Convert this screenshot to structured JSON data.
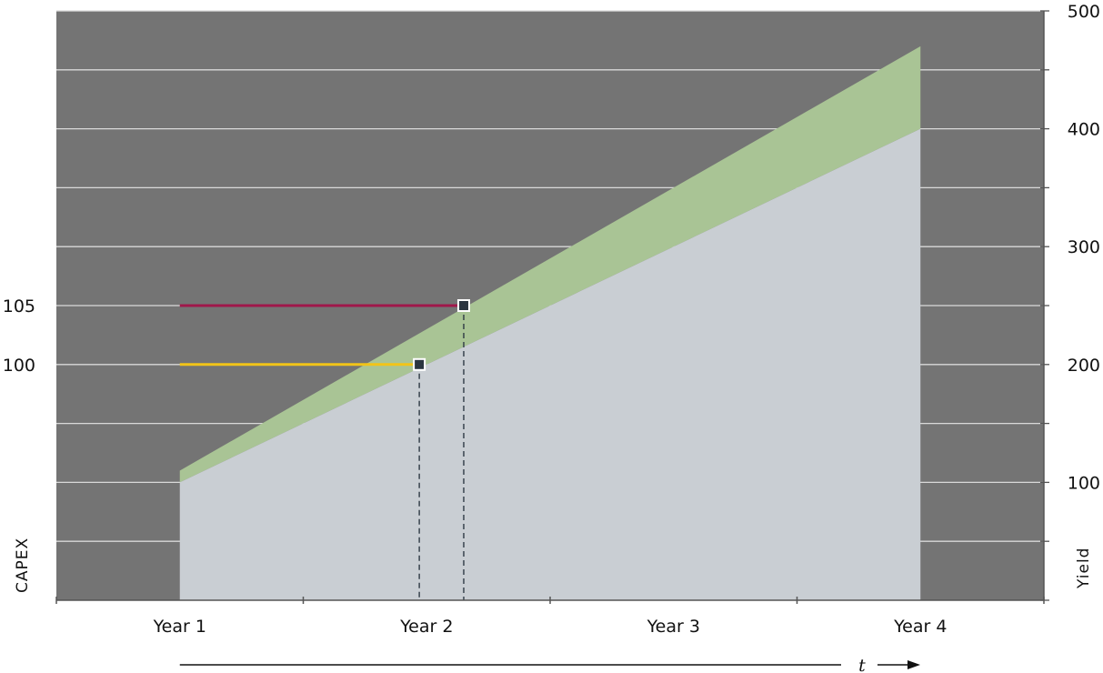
{
  "chart_data": {
    "type": "area",
    "x_categories": [
      "Year 1",
      "Year 2",
      "Year 3",
      "Year 4"
    ],
    "x_range": [
      0.5,
      4.5
    ],
    "left_axis": {
      "label": "CAPEX",
      "ticks": [
        "100",
        "105"
      ],
      "tick_yield_equiv": [
        200,
        250
      ]
    },
    "right_axis": {
      "label": "Yield",
      "ticks": [
        100,
        200,
        300,
        400,
        500
      ],
      "ylim": [
        0,
        500
      ]
    },
    "gridlines_yield": [
      50,
      100,
      150,
      200,
      250,
      300,
      350,
      400,
      450,
      500
    ],
    "x_arrow_label": "t",
    "series": [
      {
        "role": "base-area",
        "color": "#c9ced3",
        "x": [
          1,
          4
        ],
        "y": [
          100,
          400
        ]
      },
      {
        "role": "band-upper",
        "color": "#a9c495",
        "x": [
          1,
          4
        ],
        "y": [
          110,
          470
        ]
      }
    ],
    "capex_lines": [
      {
        "capex": 100,
        "color": "#f2c418",
        "x_start": 1,
        "x_end": 1.97,
        "yield": 200
      },
      {
        "capex": 105,
        "color": "#a0174b",
        "x_start": 1,
        "x_end": 2.15,
        "yield": 250
      }
    ],
    "grid": true,
    "colors": {
      "plot_background": "#747474",
      "gridline": "#d9d9d9",
      "axis": "#555555"
    }
  }
}
